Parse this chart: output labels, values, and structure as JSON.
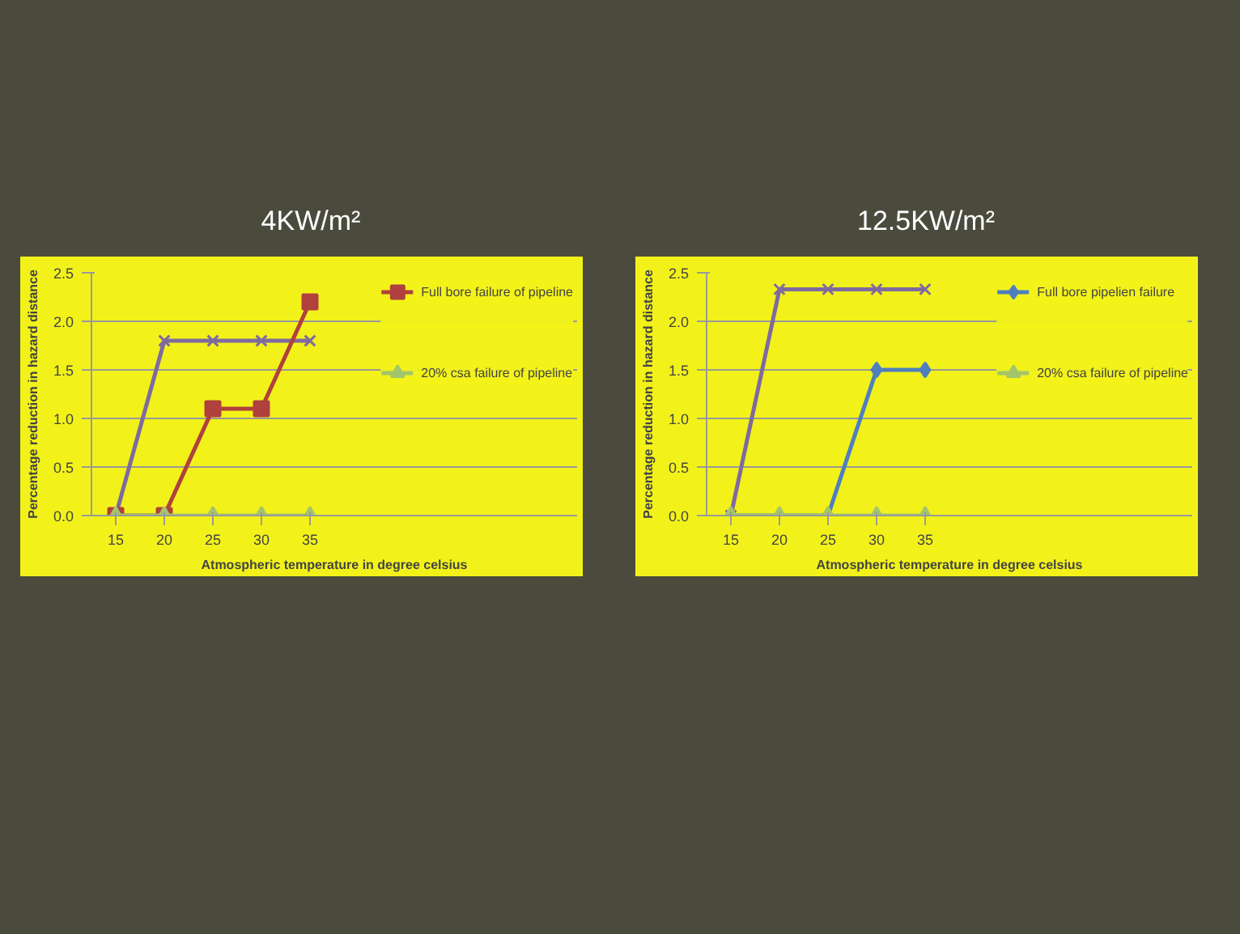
{
  "chart_data": [
    {
      "type": "line",
      "title": "4KW/m²",
      "xlabel": "Atmospheric temperature in degree celsius",
      "ylabel": "Percentage reduction in hazard distance",
      "categories": [
        "15",
        "20",
        "25",
        "30",
        "35"
      ],
      "ylim": [
        0,
        2.5
      ],
      "yticks": [
        {
          "value": 0,
          "label": "0.0"
        },
        {
          "value": 0.5,
          "label": "0.5"
        },
        {
          "value": 1,
          "label": "1.0"
        },
        {
          "value": 1.5,
          "label": "1.5"
        },
        {
          "value": 2,
          "label": "2.0"
        },
        {
          "value": 2.5,
          "label": "2.5"
        }
      ],
      "grid": "y",
      "legend": "right",
      "series": [
        {
          "color": "#7f6aa0",
          "marker": "cross",
          "values": [
            0,
            1.8,
            1.8,
            1.8,
            1.8
          ]
        },
        {
          "name": "Full bore failure of pipeline",
          "color": "#b0413e",
          "marker": "square",
          "values": [
            0,
            0,
            1.1,
            1.1,
            2.2
          ]
        },
        {
          "name": "20% csa failure of pipeline",
          "color": "#a4c46c",
          "marker": "triangle",
          "values": [
            0,
            0,
            0,
            0,
            0
          ]
        }
      ]
    },
    {
      "type": "line",
      "title": "12.5KW/m²",
      "xlabel": "Atmospheric temperature in degree celsius",
      "ylabel": "Percentage reduction in hazard distance",
      "categories": [
        "15",
        "20",
        "25",
        "30",
        "35"
      ],
      "ylim": [
        0,
        2.5
      ],
      "yticks": [
        {
          "value": 0,
          "label": "0.0"
        },
        {
          "value": 0.5,
          "label": "0.5"
        },
        {
          "value": 1,
          "label": "1.0"
        },
        {
          "value": 1.5,
          "label": "1.5"
        },
        {
          "value": 2,
          "label": "2.0"
        },
        {
          "value": 2.5,
          "label": "2.5"
        }
      ],
      "grid": "y",
      "legend": "right",
      "series": [
        {
          "color": "#7f6aa0",
          "marker": "cross",
          "values": [
            0,
            2.33,
            2.33,
            2.33,
            2.33
          ]
        },
        {
          "name": "Full bore pipelien failure",
          "color": "#4f7fbd",
          "marker": "diamond",
          "values": [
            0,
            0,
            0,
            1.5,
            1.5
          ]
        },
        {
          "name": "20% csa failure of pipeline",
          "color": "#a4c46c",
          "marker": "triangle",
          "values": [
            0,
            0,
            0,
            0,
            0
          ]
        }
      ]
    }
  ]
}
